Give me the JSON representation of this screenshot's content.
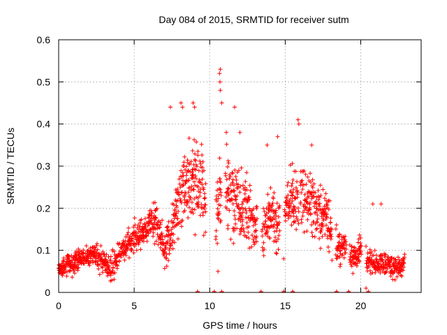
{
  "chart_data": {
    "type": "scatter",
    "title": "Day 084 of 2015, SRMTID for receiver sutm",
    "xlabel": "GPS time / hours",
    "ylabel": "SRMTID / TECUs",
    "xlim": [
      0,
      24
    ],
    "ylim": [
      0,
      0.6
    ],
    "x_ticks": [
      0,
      5,
      10,
      15,
      20
    ],
    "x_tick_labels": [
      "0",
      "5",
      "10",
      "15",
      "20"
    ],
    "y_ticks": [
      0,
      0.1,
      0.2,
      0.3,
      0.4,
      0.5,
      0.6
    ],
    "y_tick_labels": [
      "0",
      "0.1",
      "0.2",
      "0.3",
      "0.4",
      "0.5",
      "0.6"
    ],
    "grid": true,
    "marker": "+",
    "color": "#ff0000",
    "series": [
      {
        "name": "SRMTID",
        "trend": [
          [
            0,
            0.06
          ],
          [
            0.5,
            0.065
          ],
          [
            1,
            0.07
          ],
          [
            1.5,
            0.08
          ],
          [
            2,
            0.085
          ],
          [
            2.5,
            0.09
          ],
          [
            3,
            0.07
          ],
          [
            3.5,
            0.06
          ],
          [
            4,
            0.09
          ],
          [
            4.5,
            0.11
          ],
          [
            5,
            0.13
          ],
          [
            5.5,
            0.14
          ],
          [
            6,
            0.16
          ],
          [
            6.5,
            0.17
          ],
          [
            7,
            0.1
          ],
          [
            7.5,
            0.15
          ],
          [
            8,
            0.22
          ],
          [
            8.5,
            0.26
          ],
          [
            9,
            0.27
          ],
          [
            9.5,
            0.25
          ],
          [
            10,
            0.15
          ],
          [
            10.5,
            0.2
          ],
          [
            11,
            0.25
          ],
          [
            11.5,
            0.22
          ],
          [
            12,
            0.2
          ],
          [
            12.5,
            0.19
          ],
          [
            13,
            0.16
          ],
          [
            13.5,
            0.14
          ],
          [
            14,
            0.18
          ],
          [
            14.5,
            0.16
          ],
          [
            15,
            0.2
          ],
          [
            15.5,
            0.21
          ],
          [
            16,
            0.23
          ],
          [
            16.5,
            0.22
          ],
          [
            17,
            0.2
          ],
          [
            17.5,
            0.19
          ],
          [
            18,
            0.16
          ],
          [
            18.5,
            0.11
          ],
          [
            19,
            0.1
          ],
          [
            19.5,
            0.08
          ],
          [
            20,
            0.1
          ],
          [
            20.5,
            0.08
          ],
          [
            21,
            0.07
          ],
          [
            21.5,
            0.07
          ],
          [
            22,
            0.06
          ],
          [
            22.5,
            0.06
          ],
          [
            22.9,
            0.07
          ]
        ],
        "spread": [
          [
            0,
            0.025
          ],
          [
            4,
            0.03
          ],
          [
            5,
            0.035
          ],
          [
            7,
            0.045
          ],
          [
            8,
            0.07
          ],
          [
            9.5,
            0.09
          ],
          [
            10.5,
            0.1
          ],
          [
            12,
            0.09
          ],
          [
            13,
            0.05
          ],
          [
            14,
            0.06
          ],
          [
            16,
            0.08
          ],
          [
            18,
            0.06
          ],
          [
            19,
            0.03
          ],
          [
            20,
            0.035
          ],
          [
            21,
            0.03
          ],
          [
            22.9,
            0.025
          ]
        ],
        "gaps": [
          [
            9.75,
            10.4
          ],
          [
            10.75,
            11.05
          ],
          [
            13.15,
            13.45
          ],
          [
            14.65,
            14.95
          ],
          [
            15.9,
            16.0
          ],
          [
            18.1,
            18.35
          ],
          [
            19.05,
            19.25
          ],
          [
            20.05,
            20.35
          ]
        ],
        "zero_points": [
          9.2,
          10.3,
          10.8,
          13.4,
          14.9,
          15.5,
          18.4,
          19.2,
          20.5
        ],
        "outliers": [
          [
            7.4,
            0.44
          ],
          [
            8.1,
            0.45
          ],
          [
            8.2,
            0.44
          ],
          [
            8.9,
            0.45
          ],
          [
            9.0,
            0.44
          ],
          [
            10.65,
            0.52
          ],
          [
            10.7,
            0.53
          ],
          [
            10.68,
            0.5
          ],
          [
            10.7,
            0.48
          ],
          [
            10.8,
            0.45
          ],
          [
            11.1,
            0.38
          ],
          [
            11.65,
            0.44
          ],
          [
            12.0,
            0.38
          ],
          [
            13.8,
            0.35
          ],
          [
            14.5,
            0.37
          ],
          [
            15.85,
            0.41
          ],
          [
            15.9,
            0.4
          ],
          [
            16.75,
            0.35
          ],
          [
            20.35,
            0.01
          ],
          [
            21.35,
            0.21
          ],
          [
            10.55,
            0.05
          ],
          [
            14.9,
            0.08
          ],
          [
            20.8,
            0.21
          ]
        ]
      }
    ]
  }
}
